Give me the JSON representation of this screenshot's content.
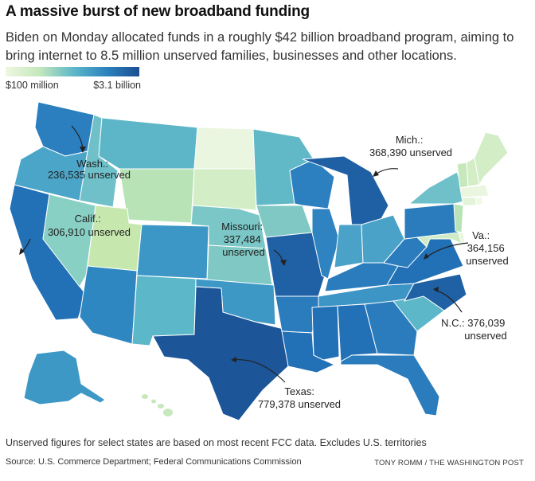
{
  "title": "A massive burst of new broadband funding",
  "subtitle": "Biden on Monday allocated funds in a roughly $42 billion broadband program, aiming to bring internet to 8.5 million unserved families, businesses and other locations.",
  "legend": {
    "min_label": "$100 million",
    "max_label": "$3.1 billion",
    "colors": [
      "#eef7e2",
      "#c6e8bc",
      "#5fb9c8",
      "#2c84bf",
      "#1b4f93"
    ]
  },
  "annotations": {
    "wash": [
      "Wash.:",
      "236,535 unserved"
    ],
    "calif": [
      "Calif.:",
      "306,910 unserved"
    ],
    "missouri": [
      "Missouri:",
      "337,484",
      "unserved"
    ],
    "mich": [
      "Mich.:",
      "368,390 unserved"
    ],
    "va": [
      "Va.:",
      "364,156",
      "unserved"
    ],
    "nc": [
      "N.C.: 376,039",
      "unserved"
    ],
    "texas": [
      "Texas:",
      "779,378 unserved"
    ]
  },
  "footnote": "Unserved figures for select states are based on most recent FCC data. Excludes U.S. territories",
  "source": "Source: U.S. Commerce Department; Federal Communications Commission",
  "credit": "TONY ROMM / THE WASHINGTON POST"
}
